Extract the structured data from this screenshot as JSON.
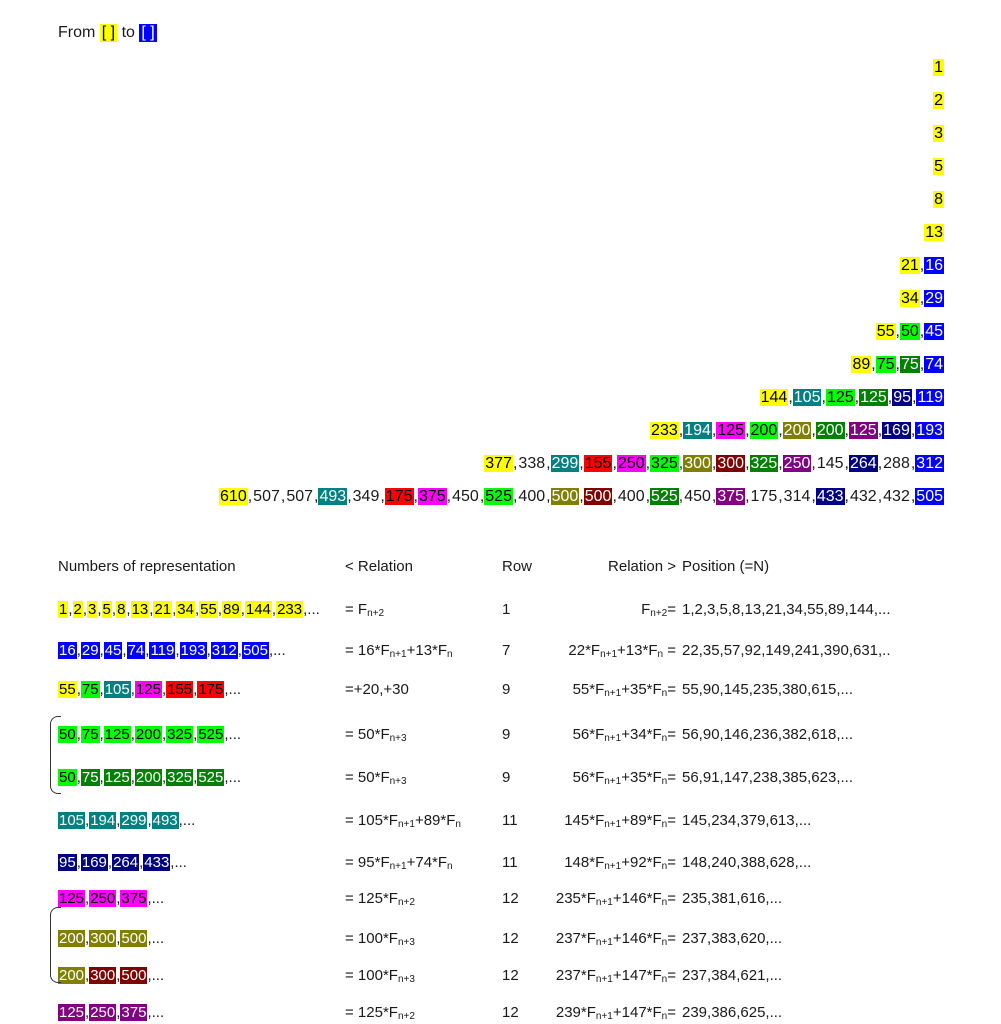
{
  "header": {
    "from_label": "From",
    "from_box": "[ ]",
    "to_label": "to",
    "to_box": "[ ]",
    "colors": {
      "from": "#ffff00",
      "to": "#0000ff"
    }
  },
  "triangle_rows": [
    [
      [
        "1",
        "yellow"
      ]
    ],
    [
      [
        "2",
        "yellow"
      ]
    ],
    [
      [
        "3",
        "yellow"
      ]
    ],
    [
      [
        "5",
        "yellow"
      ]
    ],
    [
      [
        "8",
        "yellow"
      ]
    ],
    [
      [
        "13",
        "yellow"
      ]
    ],
    [
      [
        "21",
        "yellow"
      ],
      [
        "16",
        "blue"
      ]
    ],
    [
      [
        "34",
        "yellow"
      ],
      [
        "29",
        "blue"
      ]
    ],
    [
      [
        "55",
        "yellow"
      ],
      [
        "50",
        "lime"
      ],
      [
        "45",
        "blue"
      ]
    ],
    [
      [
        "89",
        "yellow"
      ],
      [
        "75",
        "lime"
      ],
      [
        "75",
        "green"
      ],
      [
        "74",
        "blue"
      ]
    ],
    [
      [
        "144",
        "yellow"
      ],
      [
        "105",
        "teal"
      ],
      [
        "125",
        "lime"
      ],
      [
        "125",
        "green"
      ],
      [
        "95",
        "navy"
      ],
      [
        "119",
        "blue"
      ]
    ],
    [
      [
        "233",
        "yellow"
      ],
      [
        "194",
        "teal"
      ],
      [
        "125",
        "magenta"
      ],
      [
        "200",
        "lime"
      ],
      [
        "200",
        "olive"
      ],
      [
        "200",
        "green"
      ],
      [
        "125",
        "purple"
      ],
      [
        "169",
        "navy"
      ],
      [
        "193",
        "blue"
      ]
    ],
    [
      [
        "377",
        "yellow"
      ],
      [
        "338",
        "none"
      ],
      [
        "299",
        "teal"
      ],
      [
        "155",
        "red"
      ],
      [
        "250",
        "magenta"
      ],
      [
        "325",
        "lime"
      ],
      [
        "300",
        "olive"
      ],
      [
        "300",
        "maroon"
      ],
      [
        "325",
        "green"
      ],
      [
        "250",
        "purple"
      ],
      [
        "145",
        "none"
      ],
      [
        "264",
        "navy"
      ],
      [
        "288",
        "none"
      ],
      [
        "312",
        "blue"
      ]
    ],
    [
      [
        "610",
        "yellow"
      ],
      [
        "507",
        "none"
      ],
      [
        "507",
        "none"
      ],
      [
        "493",
        "teal"
      ],
      [
        "349",
        "none"
      ],
      [
        "175",
        "red"
      ],
      [
        "375",
        "magenta"
      ],
      [
        "450",
        "none"
      ],
      [
        "525",
        "lime"
      ],
      [
        "400",
        "none"
      ],
      [
        "500",
        "olive"
      ],
      [
        "500",
        "maroon"
      ],
      [
        "400",
        "none"
      ],
      [
        "525",
        "green"
      ],
      [
        "450",
        "none"
      ],
      [
        "375",
        "purple"
      ],
      [
        "175",
        "none"
      ],
      [
        "314",
        "none"
      ],
      [
        "433",
        "navy"
      ],
      [
        "432",
        "none"
      ],
      [
        "432",
        "none"
      ],
      [
        "505",
        "blue"
      ]
    ]
  ],
  "table": {
    "headers": {
      "numbers": "Numbers of representation",
      "left_relation": "< Relation",
      "row": "Row",
      "right_relation": "Relation >",
      "position": "Position (=N)"
    },
    "rows": [
      {
        "nums": [
          [
            "1",
            "yellow"
          ],
          [
            "2",
            "yellow"
          ],
          [
            "3",
            "yellow"
          ],
          [
            "5",
            "yellow"
          ],
          [
            "8",
            "yellow"
          ],
          [
            "13",
            "yellow"
          ],
          [
            "21",
            "yellow"
          ],
          [
            "34",
            "yellow"
          ],
          [
            "55",
            "yellow"
          ],
          [
            "89",
            "yellow"
          ],
          [
            "144",
            "yellow"
          ],
          [
            "233",
            "yellow"
          ]
        ],
        "left_relation": "= F{n+2}",
        "row": "1",
        "right_relation": "F{n+2}=",
        "position": "1,2,3,5,8,13,21,34,55,89,144,..."
      },
      {
        "nums": [
          [
            "16",
            "blue"
          ],
          [
            "29",
            "blue"
          ],
          [
            "45",
            "blue"
          ],
          [
            "74",
            "blue"
          ],
          [
            "119",
            "blue"
          ],
          [
            "193",
            "blue"
          ],
          [
            "312",
            "blue"
          ],
          [
            "505",
            "blue"
          ]
        ],
        "left_relation": "= 16*F{n+1}+13*F{n}",
        "row": "7",
        "right_relation": "22*F{n+1}+13*F{n} =",
        "position": "22,35,57,92,149,241,390,631,.."
      },
      {
        "nums": [
          [
            "55",
            "yellow"
          ],
          [
            "75",
            "lime"
          ],
          [
            "105",
            "teal"
          ],
          [
            "125",
            "magenta"
          ],
          [
            "155",
            "red"
          ],
          [
            "175",
            "red"
          ]
        ],
        "left_relation": "=+20,+30",
        "row": "9",
        "right_relation": "55*F{n+1}+35*F{n}=",
        "position": "55,90,145,235,380,615,..."
      },
      {
        "nums": [
          [
            "50",
            "lime"
          ],
          [
            "75",
            "lime"
          ],
          [
            "125",
            "lime"
          ],
          [
            "200",
            "lime"
          ],
          [
            "325",
            "lime"
          ],
          [
            "525",
            "lime"
          ]
        ],
        "left_relation": "= 50*F{n+3}",
        "row": "9",
        "right_relation": "56*F{n+1}+34*F{n}=",
        "position": "56,90,146,236,382,618,..."
      },
      {
        "nums": [
          [
            "50",
            "lime"
          ],
          [
            "75",
            "green"
          ],
          [
            "125",
            "green"
          ],
          [
            "200",
            "green"
          ],
          [
            "325",
            "green"
          ],
          [
            "525",
            "green"
          ]
        ],
        "left_relation": "= 50*F{n+3}",
        "row": "9",
        "right_relation": "56*F{n+1}+35*F{n}=",
        "position": "56,91,147,238,385,623,..."
      },
      {
        "nums": [
          [
            "105",
            "teal"
          ],
          [
            "194",
            "teal"
          ],
          [
            "299",
            "teal"
          ],
          [
            "493",
            "teal"
          ]
        ],
        "left_relation": "= 105*F{n+1}+89*F{n}",
        "row": "11",
        "right_relation": "145*F{n+1}+89*F{n}=",
        "position": "145,234,379,613,..."
      },
      {
        "nums": [
          [
            "95",
            "navy"
          ],
          [
            "169",
            "navy"
          ],
          [
            "264",
            "navy"
          ],
          [
            "433",
            "navy"
          ]
        ],
        "left_relation": "= 95*F{n+1}+74*F{n}",
        "row": "11",
        "right_relation": "148*F{n+1}+92*F{n}=",
        "position": "148,240,388,628,..."
      },
      {
        "nums": [
          [
            "125",
            "magenta"
          ],
          [
            "250",
            "magenta"
          ],
          [
            "375",
            "magenta"
          ]
        ],
        "left_relation": "= 125*F{n+2}",
        "row": "12",
        "right_relation": "235*F{n+1}+146*F{n}=",
        "position": "235,381,616,..."
      },
      {
        "nums": [
          [
            "200",
            "olive"
          ],
          [
            "300",
            "olive"
          ],
          [
            "500",
            "olive"
          ]
        ],
        "left_relation": "= 100*F{n+3}",
        "row": "12",
        "right_relation": "237*F{n+1}+146*F{n}=",
        "position": "237,383,620,..."
      },
      {
        "nums": [
          [
            "200",
            "olive"
          ],
          [
            "300",
            "maroon"
          ],
          [
            "500",
            "maroon"
          ]
        ],
        "left_relation": "= 100*F{n+3}",
        "row": "12",
        "right_relation": "237*F{n+1}+147*F{n}=",
        "position": "237,384,621,..."
      },
      {
        "nums": [
          [
            "125",
            "purple"
          ],
          [
            "250",
            "purple"
          ],
          [
            "375",
            "purple"
          ]
        ],
        "left_relation": "= 125*F{n+2}",
        "row": "12",
        "right_relation": "239*F{n+1}+147*F{n}=",
        "position": "239,386,625,..."
      }
    ],
    "ellipsis": ",..."
  },
  "colors": {
    "yellow": "#ffff00",
    "blue": "#0000ff",
    "lime": "#00ff00",
    "green": "#008000",
    "teal": "#008080",
    "navy": "#000080",
    "magenta": "#ff00ff",
    "red": "#ff0000",
    "olive": "#808000",
    "maroon": "#800000",
    "purple": "#800080"
  }
}
